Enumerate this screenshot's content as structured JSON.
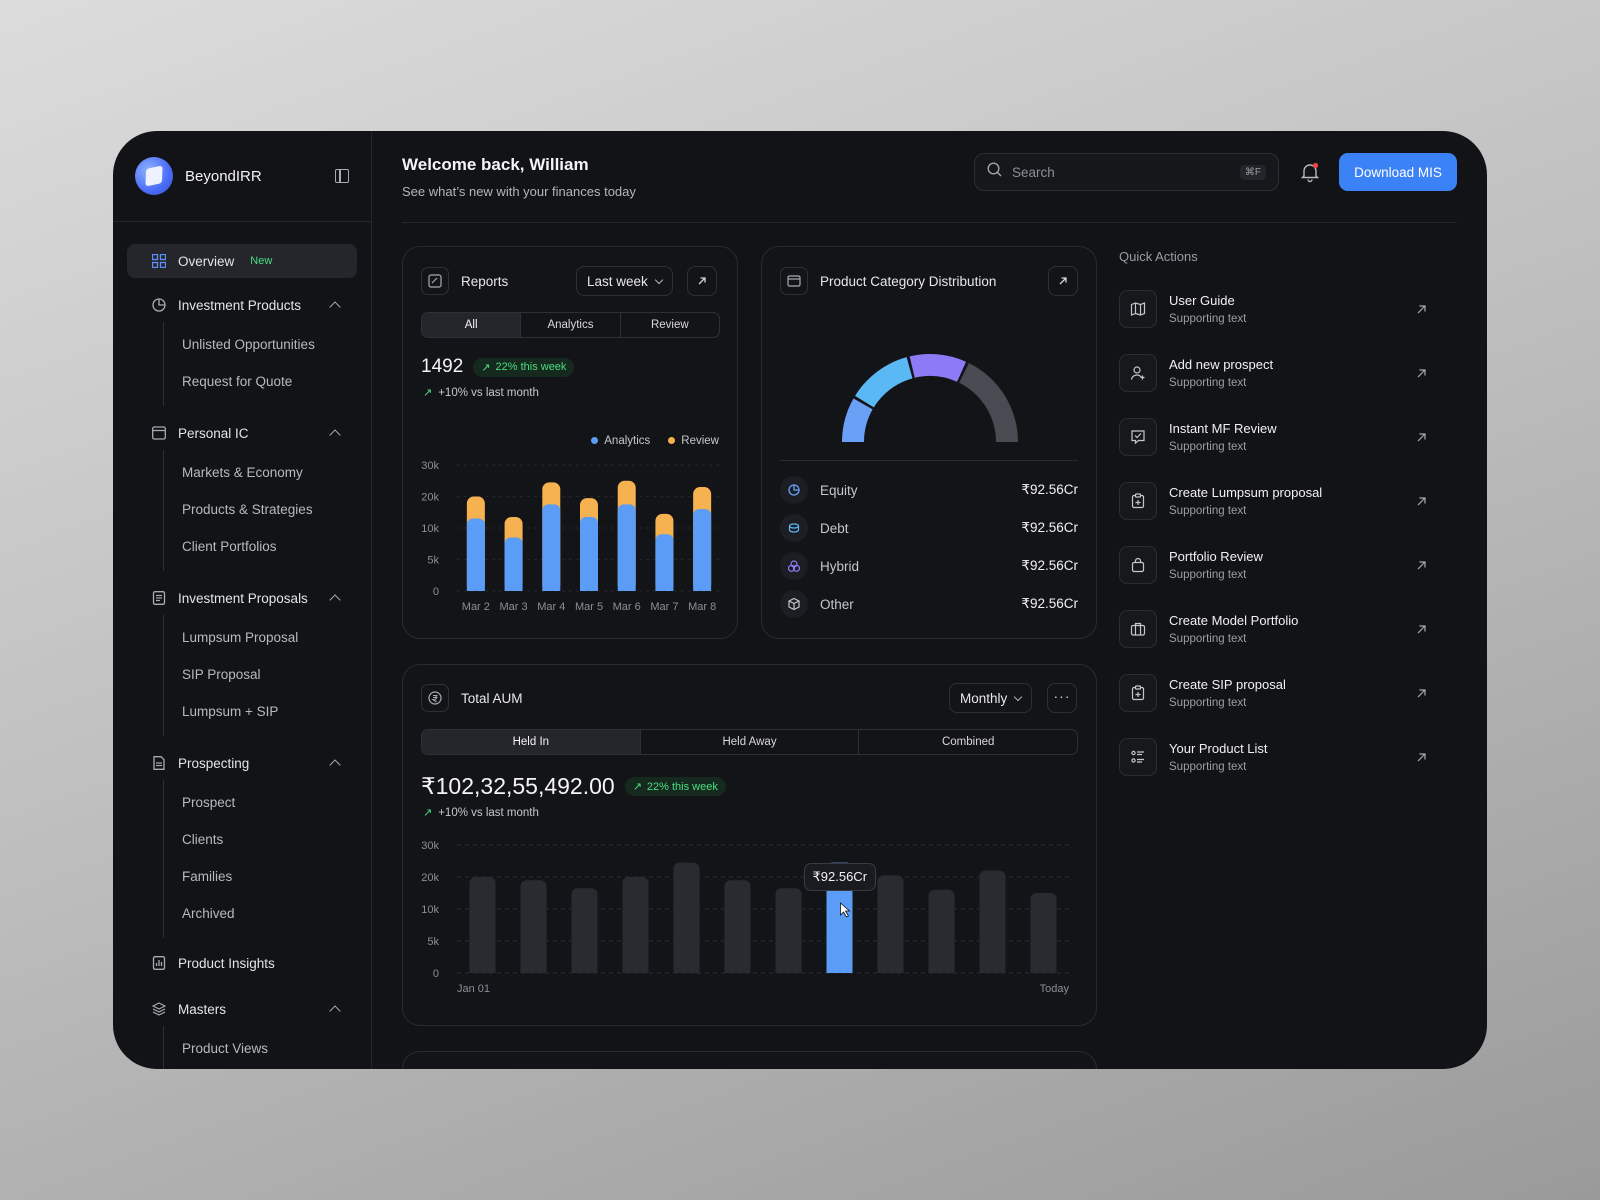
{
  "brand": {
    "name": "BeyondIRR"
  },
  "sidebar": {
    "overview": {
      "label": "Overview",
      "badge": "New"
    },
    "groups": [
      {
        "label": "Investment Products",
        "items": [
          "Unlisted Opportunities",
          "Request for Quote"
        ]
      },
      {
        "label": "Personal IC",
        "items": [
          "Markets & Economy",
          "Products & Strategies",
          "Client Portfolios"
        ]
      },
      {
        "label": "Investment Proposals",
        "items": [
          "Lumpsum Proposal",
          "SIP Proposal",
          "Lumpsum + SIP"
        ]
      },
      {
        "label": "Prospecting",
        "items": [
          "Prospect",
          "Clients",
          "Families",
          "Archived"
        ]
      }
    ],
    "product_insights": "Product Insights",
    "masters": {
      "label": "Masters",
      "first_item": "Product Views"
    }
  },
  "header": {
    "title": "Welcome back, William",
    "subtitle": "See what’s new with your finances today",
    "search_placeholder": "Search",
    "search_shortcut": "⌘F",
    "download_label": "Download MIS"
  },
  "reports": {
    "title": "Reports",
    "period": "Last week",
    "tabs": [
      "All",
      "Analytics",
      "Review"
    ],
    "active_tab": 0,
    "value": "1492",
    "pill": "22% this week",
    "delta": "+10% vs last month",
    "legend": [
      "Analytics",
      "Review"
    ],
    "colors": {
      "analytics": "#5b9cf6",
      "review": "#f6b150"
    }
  },
  "distribution": {
    "title": "Product Category Distribution",
    "rows": [
      {
        "label": "Equity",
        "value": "₹92.56Cr",
        "icon": "pie-icon"
      },
      {
        "label": "Debt",
        "value": "₹92.56Cr",
        "icon": "coins-icon"
      },
      {
        "label": "Hybrid",
        "value": "₹92.56Cr",
        "icon": "circles-icon"
      },
      {
        "label": "Other",
        "value": "₹92.56Cr",
        "icon": "cube-icon"
      }
    ]
  },
  "aum": {
    "title": "Total AUM",
    "period": "Monthly",
    "tabs": [
      "Held In",
      "Held Away",
      "Combined"
    ],
    "active_tab": 0,
    "value": "₹102,32,55,492.00",
    "pill": "22% this week",
    "delta": "+10% vs last month",
    "tooltip": "₹92.56Cr",
    "x_start": "Jan 01",
    "x_end": "Today"
  },
  "quick_actions": {
    "title": "Quick Actions",
    "items": [
      {
        "label": "User Guide",
        "sub": "Supporting text",
        "icon": "map-icon"
      },
      {
        "label": "Add new prospect",
        "sub": "Supporting text",
        "icon": "user-plus-icon"
      },
      {
        "label": "Instant MF Review",
        "sub": "Supporting text",
        "icon": "chat-icon"
      },
      {
        "label": "Create Lumpsum proposal",
        "sub": "Supporting text",
        "icon": "clipboard-plus-icon"
      },
      {
        "label": "Portfolio Review",
        "sub": "Supporting text",
        "icon": "bag-icon"
      },
      {
        "label": "Create Model Portfolio",
        "sub": "Supporting text",
        "icon": "briefcase-icon"
      },
      {
        "label": "Create SIP proposal",
        "sub": "Supporting text",
        "icon": "clipboard-plus-icon"
      },
      {
        "label": "Your Product List",
        "sub": "Supporting text",
        "icon": "list-icon"
      }
    ]
  },
  "chart_data": [
    {
      "type": "bar",
      "stacked": true,
      "categories": [
        "Mar 2",
        "Mar 3",
        "Mar 4",
        "Mar 5",
        "Mar 6",
        "Mar 7",
        "Mar 8"
      ],
      "series": [
        {
          "name": "Analytics",
          "values": [
            13000,
            8500,
            17500,
            13500,
            17500,
            9000,
            16000
          ]
        },
        {
          "name": "Review",
          "values": [
            7000,
            5000,
            7000,
            6000,
            7500,
            5500,
            7000
          ]
        }
      ],
      "ylim": [
        0,
        30000
      ],
      "yticks": [
        "30k",
        "20k",
        "10k",
        "5k",
        "0"
      ],
      "legend": "top-right"
    },
    {
      "type": "pie",
      "style": "semi-donut",
      "categories": [
        "Equity",
        "Debt",
        "Hybrid",
        "Other"
      ],
      "values": [
        17,
        25,
        22,
        36
      ],
      "colors": [
        "#6aa0f6",
        "#5ab8f5",
        "#8b7cf6",
        "#4a4b52"
      ]
    },
    {
      "type": "bar",
      "x_start_label": "Jan 01",
      "x_end_label": "Today",
      "values": [
        20000,
        19000,
        16500,
        20000,
        24500,
        19000,
        16500,
        24500,
        20500,
        16000,
        22000,
        15000
      ],
      "highlight_index": 7,
      "highlight_label": "₹92.56Cr",
      "ylim": [
        0,
        30000
      ],
      "yticks": [
        "30k",
        "20k",
        "10k",
        "5k",
        "0"
      ],
      "grid": true
    }
  ]
}
